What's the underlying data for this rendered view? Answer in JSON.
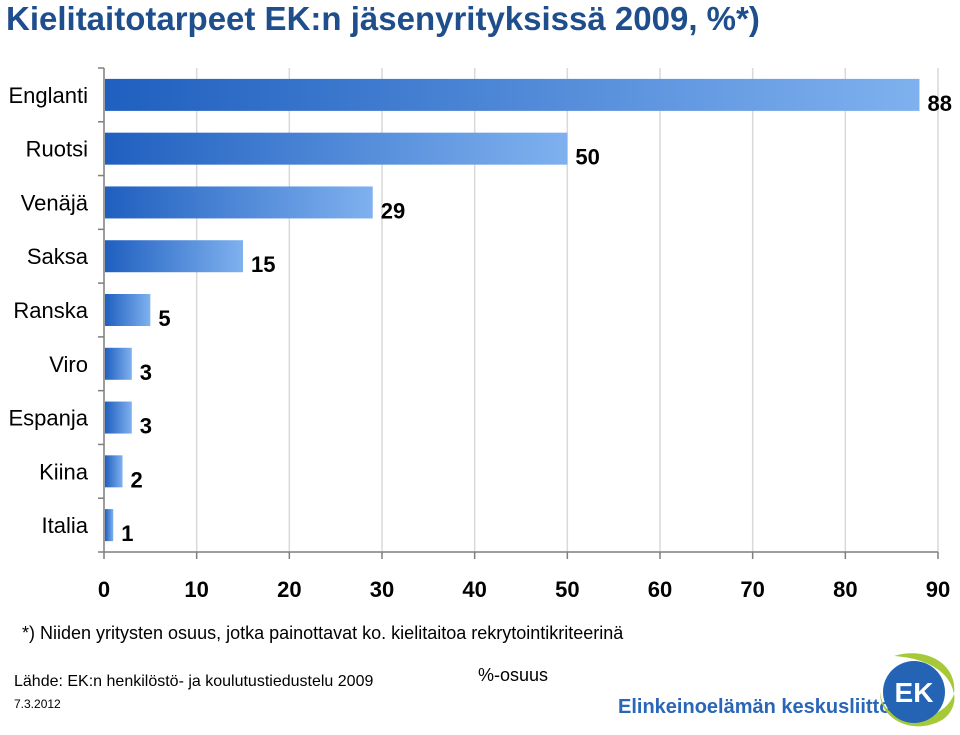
{
  "title": "Kielitaitotarpeet EK:n jäsenyrityksissä 2009, %*)",
  "footnote": "*) Niiden yritysten osuus, jotka painottavat ko. kielitaitoa rekrytointikriteerinä",
  "source": "Lähde: EK:n henkilöstö- ja koulutustiedustelu 2009",
  "date": "7.3.2012",
  "org_name": "Elinkeinoelämän keskusliitto",
  "logo_text": "EK",
  "colors": {
    "title": "#1f4e8c",
    "bar_light": "#7fb1ef",
    "bar_dark": "#1f5fbf",
    "org_name": "#2a66b7",
    "logo_blue": "#2563b4",
    "logo_green": "#a6c93a"
  },
  "chart_data": {
    "type": "bar",
    "orientation": "horizontal",
    "categories": [
      "Englanti",
      "Ruotsi",
      "Venäjä",
      "Saksa",
      "Ranska",
      "Viro",
      "Espanja",
      "Kiina",
      "Italia"
    ],
    "values": [
      88,
      50,
      29,
      15,
      5,
      3,
      3,
      2,
      1
    ],
    "xlabel": "%-osuus",
    "ylabel": "",
    "xlim": [
      0,
      90
    ],
    "xticks": [
      0,
      10,
      20,
      30,
      40,
      50,
      60,
      70,
      80,
      90
    ],
    "grid": "vertical",
    "legend": "none"
  }
}
